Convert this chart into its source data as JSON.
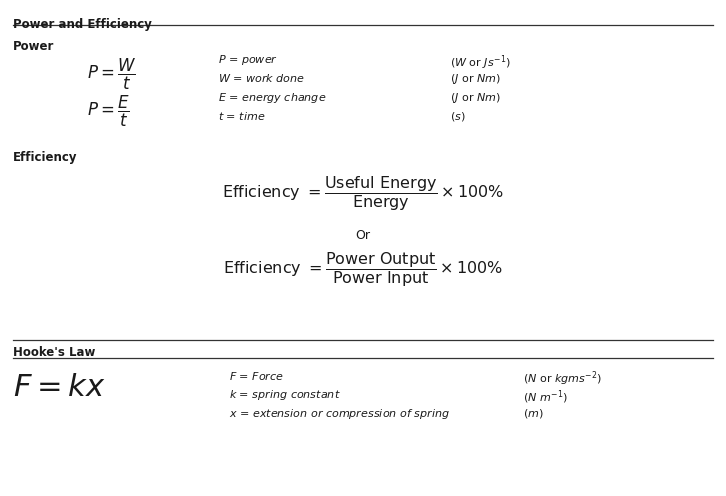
{
  "title": "Power and Efficiency",
  "section1_label": "Power",
  "section2_label": "Efficiency",
  "section3_label": "Hooke's Law",
  "bg_color": "#ffffff",
  "text_color": "#1a1a1a",
  "line_color": "#333333",
  "fig_width": 7.26,
  "fig_height": 4.96,
  "dpi": 100
}
